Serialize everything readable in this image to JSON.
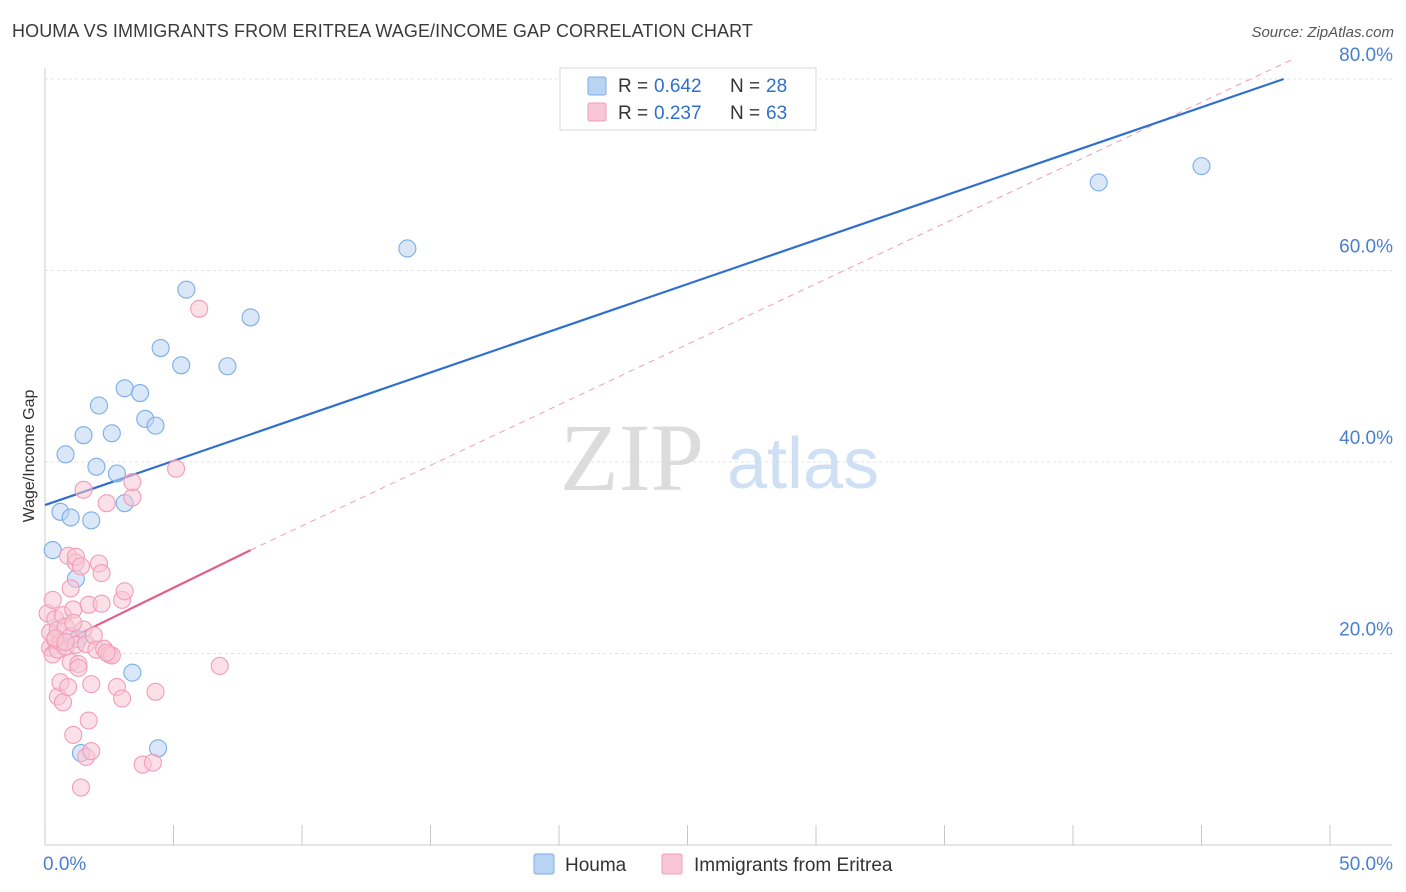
{
  "header": {
    "title": "HOUMA VS IMMIGRANTS FROM ERITREA WAGE/INCOME GAP CORRELATION CHART",
    "source": "Source: ZipAtlas.com"
  },
  "watermark": {
    "zip": "ZIP",
    "atlas": "atlas"
  },
  "chart_data": {
    "type": "scatter",
    "title": "HOUMA VS IMMIGRANTS FROM ERITREA WAGE/INCOME GAP CORRELATION CHART",
    "xlabel": "",
    "ylabel": "Wage/Income Gap",
    "xlim": [
      0,
      50
    ],
    "ylim": [
      0,
      82
    ],
    "x_tick_labels": [
      {
        "value": 0,
        "label": "0.0%"
      },
      {
        "value": 50,
        "label": "50.0%"
      }
    ],
    "x_minor_ticks": [
      0,
      5,
      10,
      15,
      20,
      25,
      30,
      35,
      40,
      45,
      50
    ],
    "y_ticks": [
      {
        "value": 20,
        "label": "20.0%"
      },
      {
        "value": 40,
        "label": "40.0%"
      },
      {
        "value": 60,
        "label": "60.0%"
      },
      {
        "value": 80,
        "label": "80.0%"
      }
    ],
    "grid": true,
    "legend_position": "top-center",
    "bottom_legend_position": "bottom-center",
    "series": [
      {
        "name": "Houma",
        "color": "#7aaee8",
        "fill": "#b9d3f3",
        "line_color": "#2f6fcd",
        "R": "0.642",
        "N": "28",
        "trend": {
          "x0": 0,
          "y0": 35.5,
          "x1": 48.2,
          "y1": 80.0,
          "dashed_extension": false
        },
        "points": [
          [
            0.3,
            30.8
          ],
          [
            0.6,
            34.8
          ],
          [
            0.8,
            40.8
          ],
          [
            1.0,
            34.2
          ],
          [
            1.2,
            27.8
          ],
          [
            1.5,
            42.8
          ],
          [
            1.8,
            33.9
          ],
          [
            2.0,
            39.5
          ],
          [
            2.1,
            45.9
          ],
          [
            2.6,
            43.0
          ],
          [
            2.8,
            38.8
          ],
          [
            3.1,
            35.7
          ],
          [
            3.1,
            47.7
          ],
          [
            3.7,
            47.2
          ],
          [
            3.9,
            44.5
          ],
          [
            4.3,
            43.8
          ],
          [
            4.5,
            51.9
          ],
          [
            5.3,
            50.1
          ],
          [
            5.5,
            58.0
          ],
          [
            7.1,
            50.0
          ],
          [
            8.0,
            55.1
          ],
          [
            14.1,
            62.3
          ],
          [
            41.0,
            69.2
          ],
          [
            45.0,
            70.9
          ],
          [
            1.4,
            9.6
          ],
          [
            3.4,
            18.0
          ],
          [
            4.4,
            10.1
          ],
          [
            1.3,
            21.5
          ]
        ]
      },
      {
        "name": "Immigrants from Eritrea",
        "color": "#f29cb8",
        "fill": "#f8c6d6",
        "line_color": "#e0608a",
        "R": "0.237",
        "N": "63",
        "trend": {
          "x0": 0,
          "y0": 20.3,
          "x1": 8.0,
          "y1": 30.8,
          "dashed_to": [
            48.5,
            82.0
          ]
        },
        "points": [
          [
            0.1,
            24.2
          ],
          [
            0.2,
            20.6
          ],
          [
            0.2,
            22.2
          ],
          [
            0.3,
            25.6
          ],
          [
            0.3,
            19.9
          ],
          [
            0.4,
            21.4
          ],
          [
            0.4,
            23.6
          ],
          [
            0.5,
            20.4
          ],
          [
            0.5,
            15.5
          ],
          [
            0.5,
            22.5
          ],
          [
            0.6,
            17.0
          ],
          [
            0.6,
            21.2
          ],
          [
            0.7,
            24.0
          ],
          [
            0.7,
            14.9
          ],
          [
            0.8,
            20.7
          ],
          [
            0.8,
            22.8
          ],
          [
            0.9,
            30.2
          ],
          [
            0.9,
            16.5
          ],
          [
            1.0,
            21.8
          ],
          [
            1.0,
            19.1
          ],
          [
            1.0,
            26.8
          ],
          [
            1.1,
            24.6
          ],
          [
            1.1,
            11.5
          ],
          [
            1.2,
            29.5
          ],
          [
            1.2,
            30.1
          ],
          [
            1.2,
            20.9
          ],
          [
            1.3,
            18.9
          ],
          [
            1.3,
            18.5
          ],
          [
            1.4,
            6.0
          ],
          [
            1.4,
            29.1
          ],
          [
            1.5,
            37.1
          ],
          [
            1.5,
            22.5
          ],
          [
            1.6,
            21.0
          ],
          [
            1.6,
            9.2
          ],
          [
            1.7,
            13.0
          ],
          [
            1.7,
            25.1
          ],
          [
            1.8,
            9.8
          ],
          [
            1.8,
            16.8
          ],
          [
            1.9,
            21.9
          ],
          [
            2.0,
            20.4
          ],
          [
            2.1,
            29.4
          ],
          [
            2.2,
            28.4
          ],
          [
            2.2,
            25.2
          ],
          [
            2.3,
            20.5
          ],
          [
            2.4,
            35.7
          ],
          [
            2.5,
            19.9
          ],
          [
            2.6,
            19.8
          ],
          [
            2.8,
            16.5
          ],
          [
            3.0,
            25.6
          ],
          [
            3.1,
            26.5
          ],
          [
            3.0,
            15.3
          ],
          [
            3.4,
            36.3
          ],
          [
            3.4,
            37.9
          ],
          [
            3.8,
            8.4
          ],
          [
            4.2,
            8.6
          ],
          [
            4.3,
            16.0
          ],
          [
            5.1,
            39.3
          ],
          [
            6.0,
            56.0
          ],
          [
            6.8,
            18.7
          ],
          [
            0.4,
            21.6
          ],
          [
            0.8,
            21.2
          ],
          [
            1.1,
            23.2
          ],
          [
            2.4,
            20.1
          ]
        ]
      }
    ]
  }
}
